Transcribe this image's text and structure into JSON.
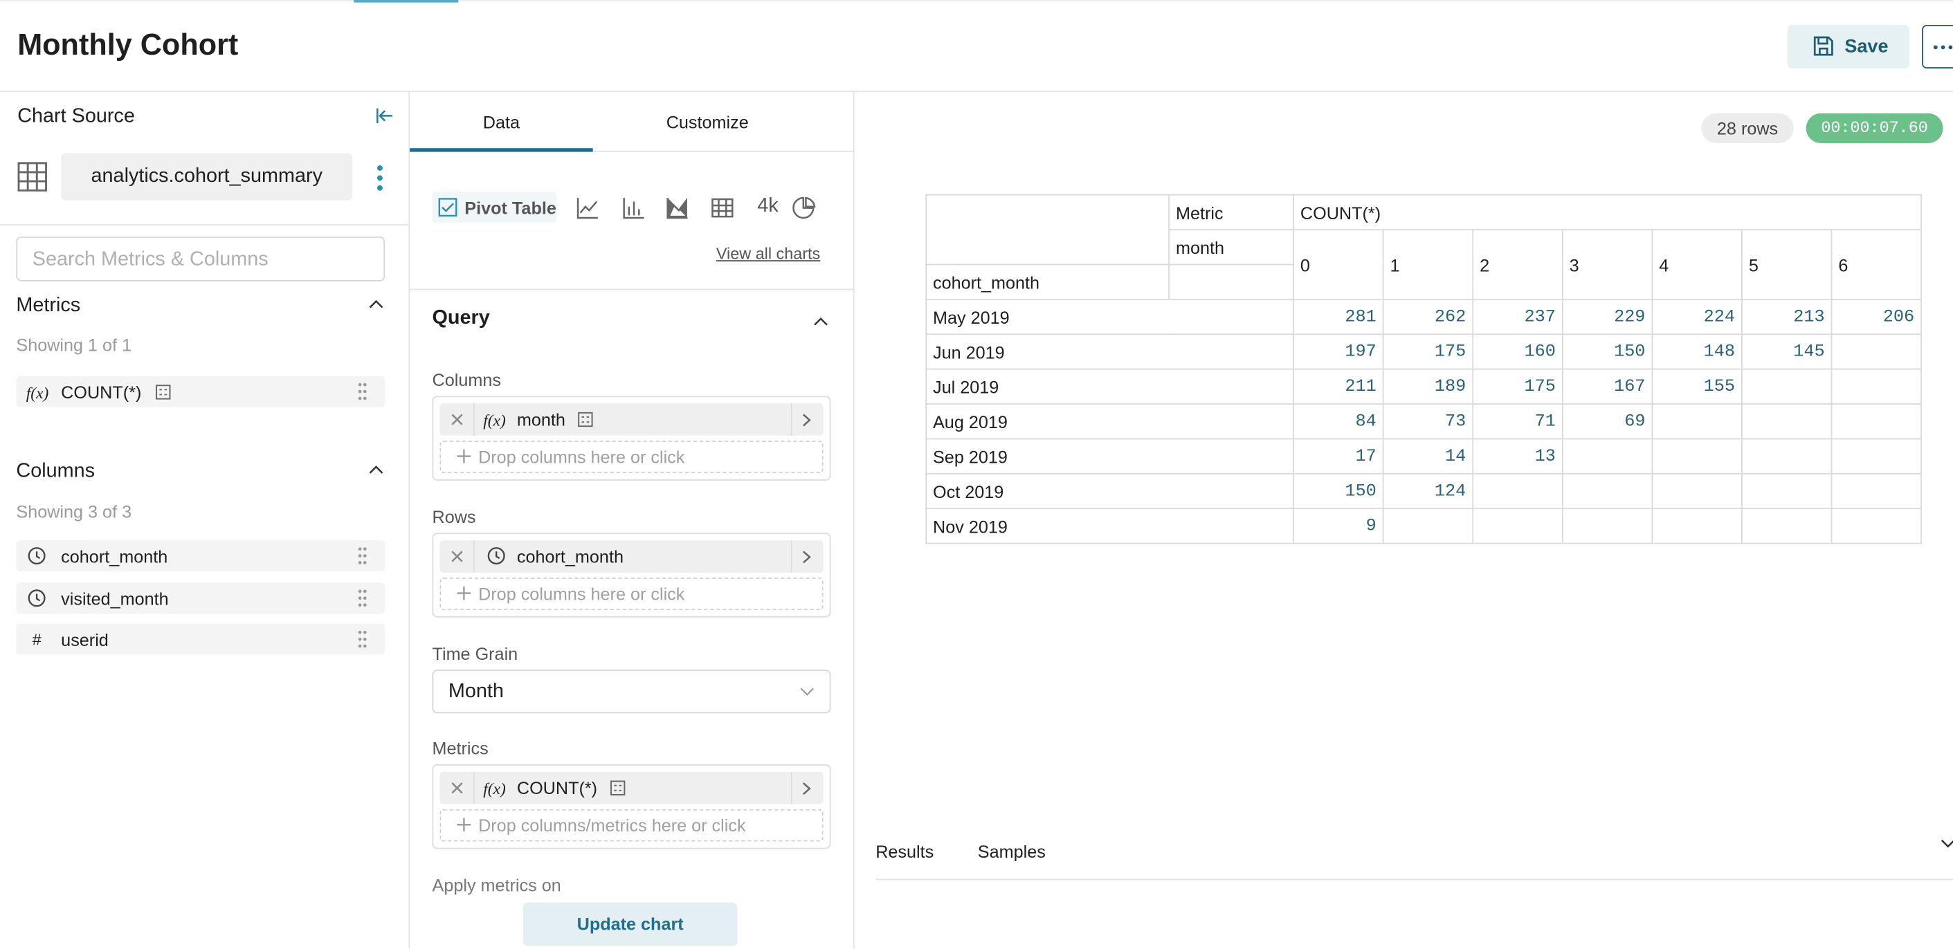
{
  "header": {
    "title": "Monthly Cohort",
    "save_button": "Save"
  },
  "chart_source": {
    "title": "Chart Source",
    "dataset": "analytics.cohort_summary",
    "search_placeholder": "Search Metrics & Columns",
    "metrics": {
      "title": "Metrics",
      "showing": "Showing 1 of 1",
      "items": [
        {
          "fx": "f(x)",
          "label": "COUNT(*)"
        }
      ]
    },
    "columns": {
      "title": "Columns",
      "showing": "Showing 3 of 3",
      "items": [
        {
          "label": "cohort_month"
        },
        {
          "label": "visited_month"
        },
        {
          "symbol": "#",
          "label": "userid"
        }
      ]
    }
  },
  "control_panel": {
    "tabs": [
      "Data",
      "Customize"
    ],
    "selected_chart": "Pivot Table",
    "big_number_icon": "4k",
    "view_all_charts": "View all charts",
    "query": {
      "title": "Query",
      "columns": {
        "label": "Columns",
        "items": [
          {
            "fx": "f(x)",
            "label": "month"
          }
        ],
        "drop_hint": "Drop columns here or click"
      },
      "rows": {
        "label": "Rows",
        "items": [
          {
            "label": "cohort_month"
          }
        ],
        "drop_hint": "Drop columns here or click"
      },
      "time_grain": {
        "label": "Time Grain",
        "value": "Month"
      },
      "metrics": {
        "label": "Metrics",
        "items": [
          {
            "fx": "f(x)",
            "label": "COUNT(*)"
          }
        ],
        "drop_hint": "Drop columns/metrics here or click"
      },
      "apply_metrics_on": "Apply metrics on"
    },
    "update_button": "Update chart"
  },
  "results": {
    "row_count": "28 rows",
    "timer": "00:00:07.60",
    "pivot": {
      "metric_label": "Metric",
      "metric": "COUNT(*)",
      "column_dim": "month",
      "row_dim": "cohort_month",
      "column_keys": [
        0,
        1,
        2,
        3,
        4,
        5,
        6
      ],
      "rows": [
        {
          "label": "May 2019",
          "values": [
            281,
            262,
            237,
            229,
            224,
            213,
            206
          ]
        },
        {
          "label": "Jun 2019",
          "values": [
            197,
            175,
            160,
            150,
            148,
            145
          ]
        },
        {
          "label": "Jul 2019",
          "values": [
            211,
            189,
            175,
            167,
            155
          ]
        },
        {
          "label": "Aug 2019",
          "values": [
            84,
            73,
            71,
            69
          ]
        },
        {
          "label": "Sep 2019",
          "values": [
            17,
            14,
            13
          ]
        },
        {
          "label": "Oct 2019",
          "values": [
            150,
            124
          ]
        },
        {
          "label": "Nov 2019",
          "values": [
            9
          ]
        }
      ]
    },
    "tabs": [
      "Results",
      "Samples"
    ]
  }
}
